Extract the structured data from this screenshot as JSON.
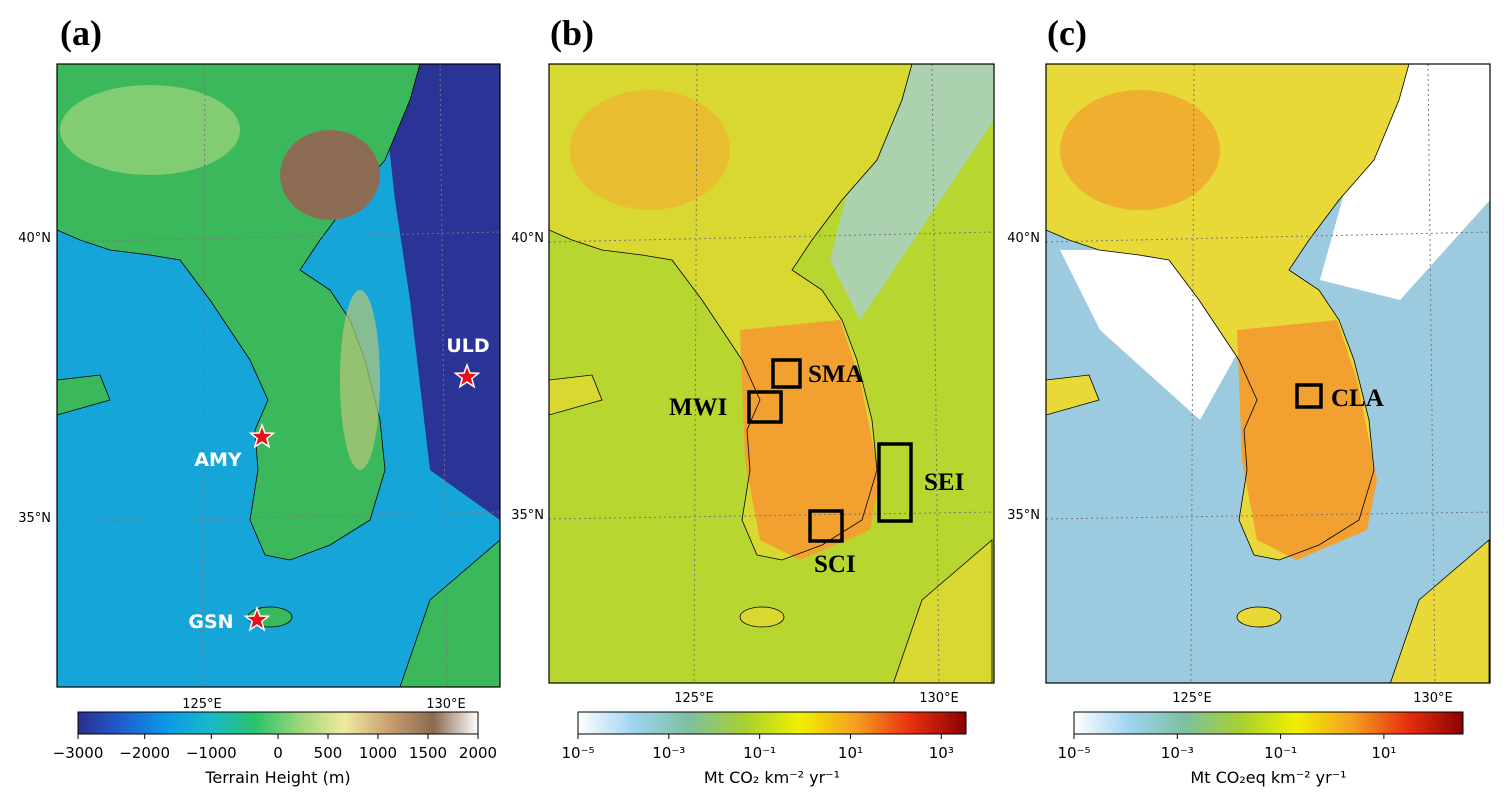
{
  "panels": [
    {
      "label": "(a)",
      "lat_labels": [
        "40°N",
        "35°N"
      ],
      "lon_labels": [
        "125°E",
        "130°E"
      ],
      "stations": [
        "ULD",
        "AMY",
        "GSN"
      ],
      "colorbar": {
        "scale": "diverging",
        "center": 0,
        "lim": [
          -3000,
          2000
        ],
        "ticks": [
          {
            "value": -3000,
            "label": "−3000"
          },
          {
            "value": -2000,
            "label": "−2000"
          },
          {
            "value": -1000,
            "label": "−1000"
          },
          0,
          500,
          1000,
          1500,
          2000
        ],
        "title": "Terrain Height (m)",
        "colors": [
          "#2b2f8f",
          "#1f5fd0",
          "#0a9ae6",
          "#19b9c8",
          "#2bc46a",
          "#9ed67a",
          "#f0eaa0",
          "#c8a070",
          "#8b6a50",
          "#ffffff"
        ]
      }
    },
    {
      "label": "(b)",
      "lat_labels": [
        "40°N",
        "35°N"
      ],
      "lon_labels": [
        "125°E",
        "130°E"
      ],
      "regions": [
        "SMA",
        "MWI",
        "SEI",
        "SCI"
      ],
      "colorbar": {
        "scale": "log",
        "lim": [
          1e-05,
          3500
        ],
        "ticks": [
          {
            "value": 1e-05,
            "label": "10⁻⁵"
          },
          {
            "value": 0.001,
            "label": "10⁻³"
          },
          {
            "value": 0.1,
            "label": "10⁻¹"
          },
          {
            "value": 10,
            "label": "10¹"
          },
          {
            "value": 1000,
            "label": "10³"
          }
        ],
        "title": "Mt CO₂  km⁻²  yr⁻¹",
        "colors": [
          "#ffffff",
          "#9fd3f0",
          "#7cc0a0",
          "#a8d030",
          "#f0f000",
          "#f5a020",
          "#e83010",
          "#8b0000"
        ]
      }
    },
    {
      "label": "(c)",
      "lat_labels": [
        "40°N",
        "35°N"
      ],
      "lon_labels": [
        "125°E",
        "130°E"
      ],
      "regions": [
        "CLA"
      ],
      "colorbar": {
        "scale": "log",
        "lim": [
          1e-05,
          340
        ],
        "ticks": [
          {
            "value": 1e-05,
            "label": "10⁻⁵"
          },
          {
            "value": 0.001,
            "label": "10⁻³"
          },
          {
            "value": 0.1,
            "label": "10⁻¹"
          },
          {
            "value": 10,
            "label": "10¹"
          }
        ],
        "title": "Mt CO₂eq  km⁻²  yr⁻¹",
        "colors": [
          "#ffffff",
          "#9fd3f0",
          "#7cc0a0",
          "#a8d030",
          "#f0f000",
          "#f5a020",
          "#e83010",
          "#8b0000"
        ]
      }
    }
  ]
}
